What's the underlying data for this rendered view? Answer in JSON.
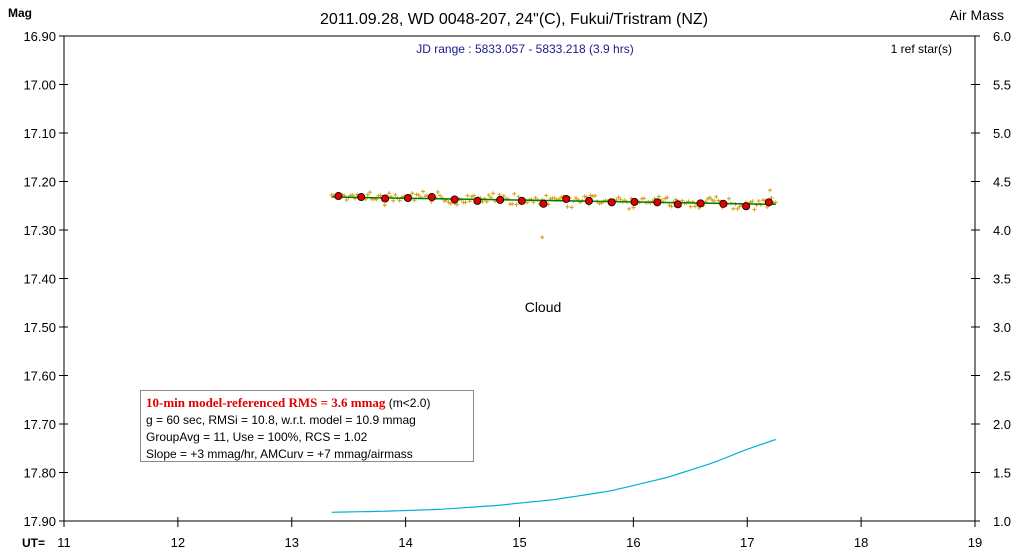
{
  "chart_data": {
    "type": "scatter",
    "title": "2011.09.28, WD 0048-207, 24\"(C), Fukui/Tristram (NZ)",
    "subtitle": "JD range : 5833.057 - 5833.218 (3.9 hrs)",
    "ref_stars": "1 ref star(s)",
    "ylabel": "Mag",
    "y2label": "Air Mass",
    "xlabel_prefix": "UT=",
    "xlim": [
      11,
      19
    ],
    "ylim": [
      17.9,
      16.9
    ],
    "y2lim": [
      1.0,
      6.0
    ],
    "y_inverted": true,
    "x_ticks": [
      "11",
      "12",
      "13",
      "14",
      "15",
      "16",
      "17",
      "18",
      "19"
    ],
    "y_ticks": [
      "16.90",
      "17.00",
      "17.10",
      "17.20",
      "17.30",
      "17.40",
      "17.50",
      "17.60",
      "17.70",
      "17.80",
      "17.90"
    ],
    "y2_ticks": [
      "6.0",
      "5.5",
      "5.0",
      "4.5",
      "4.0",
      "3.5",
      "3.0",
      "2.5",
      "2.0",
      "1.5",
      "1.0"
    ],
    "annotation": "Cloud",
    "grid": false,
    "series": [
      {
        "kind": "group-averages",
        "color": "#e00000",
        "x": [
          13.41,
          13.61,
          13.82,
          14.02,
          14.23,
          14.43,
          14.63,
          14.83,
          15.02,
          15.21,
          15.41,
          15.61,
          15.81,
          16.01,
          16.21,
          16.39,
          16.59,
          16.79,
          16.99,
          17.19
        ],
        "y": [
          17.23,
          17.232,
          17.235,
          17.234,
          17.232,
          17.237,
          17.24,
          17.238,
          17.24,
          17.246,
          17.236,
          17.24,
          17.243,
          17.242,
          17.243,
          17.247,
          17.245,
          17.246,
          17.251,
          17.243
        ]
      },
      {
        "kind": "individual-measurements",
        "color": "#d4a017",
        "x_range": [
          13.35,
          17.25
        ],
        "y_mean": 17.238,
        "y_scatter": 0.011,
        "outliers": [
          [
            15.2,
            17.315
          ],
          [
            17.2,
            17.218
          ]
        ]
      },
      {
        "kind": "model-fit",
        "color": "#008000",
        "x": [
          13.35,
          17.25
        ],
        "y": [
          17.232,
          17.247
        ]
      },
      {
        "kind": "air-mass",
        "color": "#00b0d8",
        "axis": "right",
        "x": [
          13.35,
          13.8,
          14.3,
          14.8,
          15.3,
          15.8,
          16.3,
          16.7,
          17.0,
          17.25
        ],
        "y": [
          1.09,
          1.1,
          1.12,
          1.16,
          1.22,
          1.31,
          1.45,
          1.6,
          1.74,
          1.84
        ]
      }
    ],
    "stats": {
      "rms_text": "10-min model-referenced RMS = 3.6 mmag",
      "rms_suffix": "(m<2.0)",
      "line2": "g = 60 sec, RMSi = 10.8, w.r.t. model = 10.9 mmag",
      "line3": "GroupAvg = 11, Use = 100%, RCS = 1.02",
      "line4": "Slope = +3 mmag/hr, AMCurv = +7 mmag/airmass"
    }
  }
}
